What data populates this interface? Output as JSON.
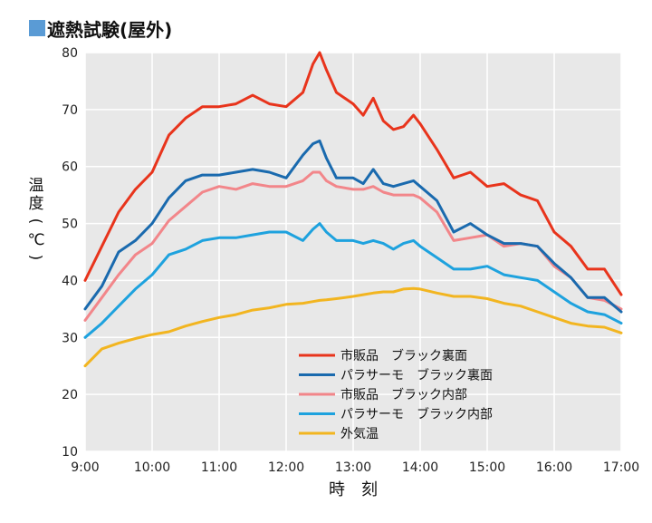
{
  "chart_data": {
    "type": "line",
    "title": "遮熱試験(屋外)",
    "xlabel": "時　刻",
    "ylabel": "温度(℃)",
    "ylabel_parts": [
      "温",
      "度",
      "(",
      "℃",
      ")"
    ],
    "x_ticks": [
      "9:00",
      "10:00",
      "11:00",
      "12:00",
      "13:00",
      "14:00",
      "15:00",
      "16:00",
      "17:00"
    ],
    "y_ticks": [
      80,
      70,
      60,
      50,
      40,
      30,
      20,
      10
    ],
    "xlim": [
      9,
      17
    ],
    "ylim": [
      10,
      80
    ],
    "grid": true,
    "plot_background": "#e8e8e8",
    "legend_position": "bottom-center",
    "x": [
      9.0,
      9.25,
      9.5,
      9.75,
      10.0,
      10.25,
      10.5,
      10.75,
      11.0,
      11.25,
      11.5,
      11.75,
      12.0,
      12.25,
      12.4,
      12.5,
      12.6,
      12.75,
      13.0,
      13.15,
      13.3,
      13.45,
      13.6,
      13.75,
      13.9,
      14.0,
      14.25,
      14.5,
      14.75,
      15.0,
      15.25,
      15.5,
      15.75,
      16.0,
      16.25,
      16.5,
      16.75,
      17.0
    ],
    "series": [
      {
        "name": "市販品　ブラック裏面",
        "color": "#e8341c",
        "values": [
          40,
          46,
          52,
          56,
          59,
          65.5,
          68.5,
          70.5,
          70.5,
          71,
          72.5,
          71,
          70.5,
          73,
          78,
          80,
          77,
          73,
          71,
          69,
          72,
          68,
          66.5,
          67,
          69,
          67.5,
          63,
          58,
          59,
          56.5,
          57,
          55,
          54,
          48.5,
          46,
          42,
          42,
          37.5
        ]
      },
      {
        "name": "パラサーモ　ブラック裏面",
        "color": "#1a6aae",
        "values": [
          35,
          39,
          45,
          47,
          50,
          54.5,
          57.5,
          58.5,
          58.5,
          59,
          59.5,
          59,
          58,
          62,
          64,
          64.5,
          61.5,
          58,
          58,
          57,
          59.5,
          57,
          56.5,
          57,
          57.5,
          56.5,
          54,
          48.5,
          50,
          48,
          46.5,
          46.5,
          46,
          43,
          40.5,
          37,
          37,
          34.5
        ]
      },
      {
        "name": "市販品　ブラック内部",
        "color": "#f2868a",
        "values": [
          33,
          37,
          41,
          44.5,
          46.5,
          50.5,
          53,
          55.5,
          56.5,
          56,
          57,
          56.5,
          56.5,
          57.5,
          59,
          59,
          57.5,
          56.5,
          56,
          56,
          56.5,
          55.5,
          55,
          55,
          55,
          54.5,
          52,
          47,
          47.5,
          48,
          46,
          46.5,
          46,
          42.5,
          40.5,
          37,
          36.5,
          35
        ]
      },
      {
        "name": "パラサーモ　ブラック内部",
        "color": "#1ea2de",
        "values": [
          30,
          32.5,
          35.5,
          38.5,
          41,
          44.5,
          45.5,
          47,
          47.5,
          47.5,
          48,
          48.5,
          48.5,
          47,
          49,
          50,
          48.5,
          47,
          47,
          46.5,
          47,
          46.5,
          45.5,
          46.5,
          47,
          46,
          44,
          42,
          42,
          42.5,
          41,
          40.5,
          40,
          38,
          36,
          34.5,
          34,
          32.5
        ]
      },
      {
        "name": "外気温",
        "color": "#f2b520",
        "values": [
          25,
          28,
          29,
          29.8,
          30.5,
          31,
          32,
          32.8,
          33.5,
          34,
          34.8,
          35.2,
          35.8,
          36,
          36.3,
          36.5,
          36.6,
          36.8,
          37.2,
          37.5,
          37.8,
          38,
          38,
          38.5,
          38.6,
          38.5,
          37.8,
          37.2,
          37.2,
          36.8,
          36,
          35.5,
          34.5,
          33.5,
          32.5,
          32,
          31.8,
          30.8
        ]
      }
    ]
  }
}
